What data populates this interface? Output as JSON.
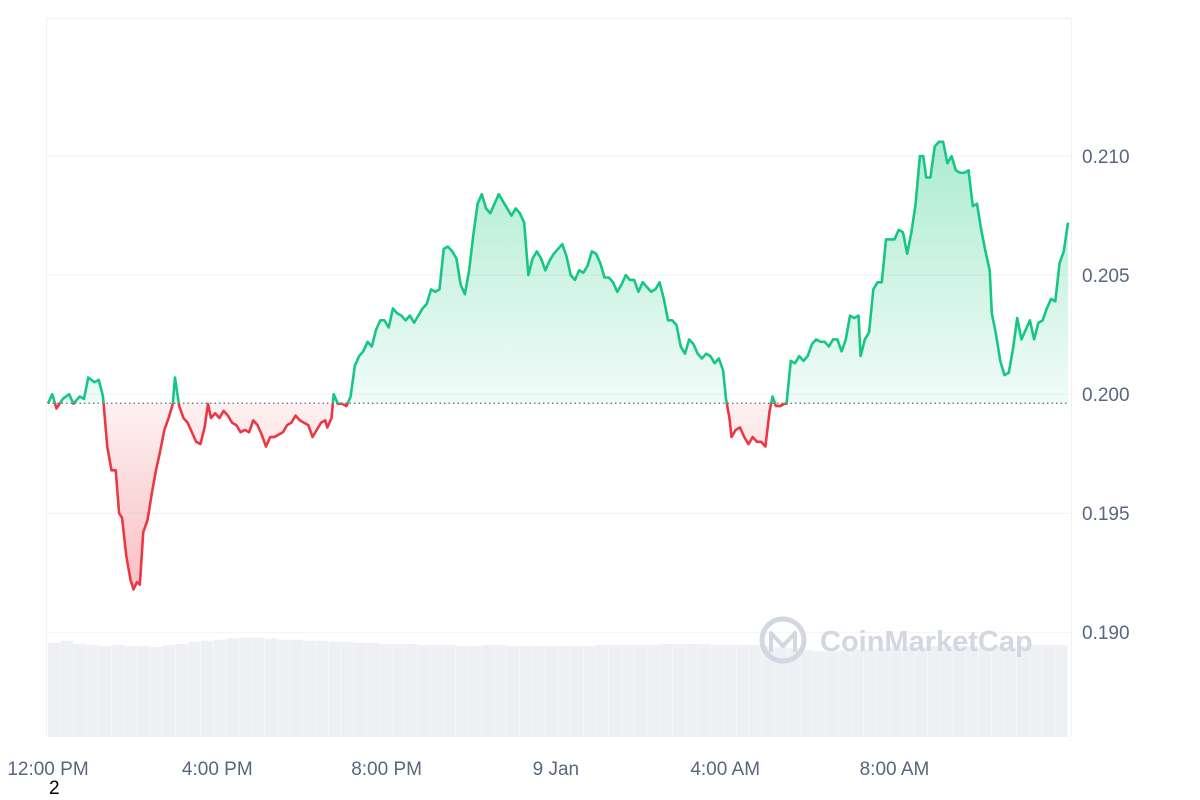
{
  "chart_data": {
    "type": "area",
    "baseline": 0.19962,
    "ylim": [
      0.1856,
      0.2158
    ],
    "y_ticks": [
      "0.210",
      "0.205",
      "0.200",
      "0.195",
      "0.190"
    ],
    "y_tick_values": [
      0.21,
      0.205,
      0.2,
      0.195,
      0.19
    ],
    "x_ticks": [
      "12:00 PM",
      "4:00 PM",
      "8:00 PM",
      "9 Jan",
      "4:00 AM",
      "8:00 AM"
    ],
    "x_tick_hours": [
      0,
      4,
      8,
      12,
      16,
      20
    ],
    "x_range_hours": [
      0,
      24.1
    ],
    "series": [
      {
        "type": "price",
        "points": [
          [
            0.0,
            0.1996
          ],
          [
            0.1,
            0.2
          ],
          [
            0.2,
            0.1994
          ],
          [
            0.35,
            0.1998
          ],
          [
            0.5,
            0.2
          ],
          [
            0.6,
            0.1996
          ],
          [
            0.75,
            0.1999
          ],
          [
            0.85,
            0.1998
          ],
          [
            0.95,
            0.2007
          ],
          [
            1.1,
            0.2005
          ],
          [
            1.2,
            0.2006
          ],
          [
            1.3,
            0.1999
          ],
          [
            1.4,
            0.1978
          ],
          [
            1.5,
            0.1968
          ],
          [
            1.6,
            0.1968
          ],
          [
            1.68,
            0.195
          ],
          [
            1.75,
            0.1948
          ],
          [
            1.85,
            0.1932
          ],
          [
            1.95,
            0.1922
          ],
          [
            2.02,
            0.1918
          ],
          [
            2.1,
            0.1921
          ],
          [
            2.17,
            0.192
          ],
          [
            2.25,
            0.1942
          ],
          [
            2.35,
            0.1947
          ],
          [
            2.45,
            0.1958
          ],
          [
            2.55,
            0.1968
          ],
          [
            2.65,
            0.1976
          ],
          [
            2.75,
            0.1985
          ],
          [
            2.85,
            0.199
          ],
          [
            2.95,
            0.1996
          ],
          [
            3.0,
            0.2007
          ],
          [
            3.1,
            0.1995
          ],
          [
            3.2,
            0.199
          ],
          [
            3.3,
            0.1988
          ],
          [
            3.4,
            0.1984
          ],
          [
            3.5,
            0.198
          ],
          [
            3.6,
            0.1979
          ],
          [
            3.7,
            0.1986
          ],
          [
            3.78,
            0.1996
          ],
          [
            3.85,
            0.199
          ],
          [
            3.95,
            0.1992
          ],
          [
            4.05,
            0.199
          ],
          [
            4.15,
            0.1993
          ],
          [
            4.25,
            0.1991
          ],
          [
            4.35,
            0.1988
          ],
          [
            4.45,
            0.1987
          ],
          [
            4.55,
            0.1984
          ],
          [
            4.65,
            0.1985
          ],
          [
            4.75,
            0.1984
          ],
          [
            4.85,
            0.1989
          ],
          [
            4.95,
            0.1987
          ],
          [
            5.05,
            0.1983
          ],
          [
            5.15,
            0.1978
          ],
          [
            5.25,
            0.1982
          ],
          [
            5.35,
            0.1982
          ],
          [
            5.45,
            0.1983
          ],
          [
            5.55,
            0.1984
          ],
          [
            5.65,
            0.1987
          ],
          [
            5.75,
            0.1988
          ],
          [
            5.85,
            0.1991
          ],
          [
            5.95,
            0.1989
          ],
          [
            6.05,
            0.1988
          ],
          [
            6.15,
            0.1987
          ],
          [
            6.25,
            0.1982
          ],
          [
            6.35,
            0.1985
          ],
          [
            6.45,
            0.1988
          ],
          [
            6.55,
            0.1989
          ],
          [
            6.6,
            0.1986
          ],
          [
            6.7,
            0.199
          ],
          [
            6.75,
            0.2
          ],
          [
            6.85,
            0.1996
          ],
          [
            6.95,
            0.1996
          ],
          [
            7.05,
            0.1995
          ],
          [
            7.15,
            0.1999
          ],
          [
            7.25,
            0.2012
          ],
          [
            7.35,
            0.2016
          ],
          [
            7.45,
            0.2018
          ],
          [
            7.55,
            0.2022
          ],
          [
            7.65,
            0.202
          ],
          [
            7.75,
            0.2027
          ],
          [
            7.85,
            0.2031
          ],
          [
            7.95,
            0.2031
          ],
          [
            8.05,
            0.2028
          ],
          [
            8.15,
            0.2036
          ],
          [
            8.25,
            0.2034
          ],
          [
            8.35,
            0.2033
          ],
          [
            8.45,
            0.2031
          ],
          [
            8.55,
            0.2033
          ],
          [
            8.65,
            0.203
          ],
          [
            8.75,
            0.2033
          ],
          [
            8.85,
            0.2036
          ],
          [
            8.95,
            0.2038
          ],
          [
            9.05,
            0.2044
          ],
          [
            9.15,
            0.2043
          ],
          [
            9.25,
            0.2044
          ],
          [
            9.35,
            0.2061
          ],
          [
            9.45,
            0.2062
          ],
          [
            9.55,
            0.206
          ],
          [
            9.65,
            0.2057
          ],
          [
            9.75,
            0.2046
          ],
          [
            9.85,
            0.2042
          ],
          [
            9.95,
            0.2052
          ],
          [
            10.05,
            0.2067
          ],
          [
            10.15,
            0.208
          ],
          [
            10.25,
            0.2084
          ],
          [
            10.35,
            0.2078
          ],
          [
            10.45,
            0.2076
          ],
          [
            10.55,
            0.208
          ],
          [
            10.65,
            0.2084
          ],
          [
            10.75,
            0.2081
          ],
          [
            10.85,
            0.2078
          ],
          [
            10.95,
            0.2075
          ],
          [
            11.05,
            0.2078
          ],
          [
            11.15,
            0.2076
          ],
          [
            11.25,
            0.2072
          ],
          [
            11.35,
            0.205
          ],
          [
            11.45,
            0.2057
          ],
          [
            11.55,
            0.206
          ],
          [
            11.65,
            0.2057
          ],
          [
            11.75,
            0.2052
          ],
          [
            11.85,
            0.2056
          ],
          [
            11.95,
            0.2059
          ],
          [
            12.05,
            0.2061
          ],
          [
            12.15,
            0.2063
          ],
          [
            12.25,
            0.2058
          ],
          [
            12.35,
            0.205
          ],
          [
            12.45,
            0.2048
          ],
          [
            12.55,
            0.2052
          ],
          [
            12.65,
            0.2051
          ],
          [
            12.75,
            0.2054
          ],
          [
            12.85,
            0.206
          ],
          [
            12.95,
            0.2059
          ],
          [
            13.05,
            0.2055
          ],
          [
            13.15,
            0.2049
          ],
          [
            13.25,
            0.2049
          ],
          [
            13.35,
            0.2047
          ],
          [
            13.45,
            0.2043
          ],
          [
            13.55,
            0.2046
          ],
          [
            13.65,
            0.205
          ],
          [
            13.75,
            0.2048
          ],
          [
            13.85,
            0.2048
          ],
          [
            13.95,
            0.2043
          ],
          [
            14.05,
            0.2047
          ],
          [
            14.15,
            0.2045
          ],
          [
            14.25,
            0.2043
          ],
          [
            14.35,
            0.2044
          ],
          [
            14.45,
            0.2047
          ],
          [
            14.55,
            0.204
          ],
          [
            14.65,
            0.2031
          ],
          [
            14.75,
            0.2031
          ],
          [
            14.85,
            0.2029
          ],
          [
            14.95,
            0.202
          ],
          [
            15.05,
            0.2017
          ],
          [
            15.15,
            0.2023
          ],
          [
            15.25,
            0.2021
          ],
          [
            15.35,
            0.2017
          ],
          [
            15.45,
            0.2015
          ],
          [
            15.55,
            0.2017
          ],
          [
            15.65,
            0.2016
          ],
          [
            15.75,
            0.2013
          ],
          [
            15.85,
            0.2015
          ],
          [
            15.95,
            0.201
          ],
          [
            16.02,
            0.1998
          ],
          [
            16.1,
            0.199
          ],
          [
            16.15,
            0.1982
          ],
          [
            16.25,
            0.1985
          ],
          [
            16.35,
            0.1986
          ],
          [
            16.45,
            0.1982
          ],
          [
            16.55,
            0.1979
          ],
          [
            16.65,
            0.1982
          ],
          [
            16.75,
            0.198
          ],
          [
            16.85,
            0.198
          ],
          [
            16.95,
            0.1978
          ],
          [
            17.05,
            0.1993
          ],
          [
            17.12,
            0.1999
          ],
          [
            17.2,
            0.1995
          ],
          [
            17.3,
            0.1995
          ],
          [
            17.4,
            0.1996
          ],
          [
            17.45,
            0.1996
          ],
          [
            17.55,
            0.2014
          ],
          [
            17.65,
            0.2013
          ],
          [
            17.75,
            0.2016
          ],
          [
            17.85,
            0.2014
          ],
          [
            17.95,
            0.2016
          ],
          [
            18.05,
            0.2021
          ],
          [
            18.15,
            0.2023
          ],
          [
            18.25,
            0.2022
          ],
          [
            18.35,
            0.2022
          ],
          [
            18.45,
            0.202
          ],
          [
            18.55,
            0.2023
          ],
          [
            18.65,
            0.2023
          ],
          [
            18.75,
            0.2018
          ],
          [
            18.85,
            0.2023
          ],
          [
            18.95,
            0.2033
          ],
          [
            19.05,
            0.2032
          ],
          [
            19.15,
            0.2033
          ],
          [
            19.2,
            0.2016
          ],
          [
            19.3,
            0.2023
          ],
          [
            19.4,
            0.2026
          ],
          [
            19.5,
            0.2044
          ],
          [
            19.6,
            0.2047
          ],
          [
            19.7,
            0.2047
          ],
          [
            19.8,
            0.2065
          ],
          [
            19.9,
            0.2065
          ],
          [
            20.0,
            0.2065
          ],
          [
            20.1,
            0.2069
          ],
          [
            20.2,
            0.2068
          ],
          [
            20.3,
            0.2059
          ],
          [
            20.4,
            0.2068
          ],
          [
            20.5,
            0.208
          ],
          [
            20.6,
            0.21
          ],
          [
            20.68,
            0.21
          ],
          [
            20.75,
            0.2091
          ],
          [
            20.85,
            0.2091
          ],
          [
            20.95,
            0.2104
          ],
          [
            21.05,
            0.2106
          ],
          [
            21.15,
            0.2106
          ],
          [
            21.25,
            0.2097
          ],
          [
            21.35,
            0.21
          ],
          [
            21.45,
            0.2094
          ],
          [
            21.55,
            0.2093
          ],
          [
            21.65,
            0.2093
          ],
          [
            21.75,
            0.2094
          ],
          [
            21.85,
            0.2079
          ],
          [
            21.95,
            0.208
          ],
          [
            22.05,
            0.2069
          ],
          [
            22.15,
            0.206
          ],
          [
            22.25,
            0.2052
          ],
          [
            22.3,
            0.2034
          ],
          [
            22.4,
            0.2025
          ],
          [
            22.5,
            0.2014
          ],
          [
            22.6,
            0.2008
          ],
          [
            22.7,
            0.2009
          ],
          [
            22.8,
            0.2019
          ],
          [
            22.9,
            0.2032
          ],
          [
            23.0,
            0.2023
          ],
          [
            23.1,
            0.2027
          ],
          [
            23.2,
            0.2031
          ],
          [
            23.3,
            0.2023
          ],
          [
            23.4,
            0.203
          ],
          [
            23.5,
            0.2031
          ],
          [
            23.6,
            0.2036
          ],
          [
            23.7,
            0.204
          ],
          [
            23.8,
            0.2039
          ],
          [
            23.9,
            0.2055
          ],
          [
            24.0,
            0.206
          ],
          [
            24.1,
            0.2072
          ]
        ]
      }
    ],
    "volume_relative": [
      0.88,
      0.9,
      0.87,
      0.86,
      0.85,
      0.86,
      0.85,
      0.85,
      0.84,
      0.86,
      0.87,
      0.89,
      0.9,
      0.91,
      0.92,
      0.93,
      0.93,
      0.92,
      0.91,
      0.91,
      0.9,
      0.9,
      0.89,
      0.89,
      0.88,
      0.88,
      0.87,
      0.87,
      0.87,
      0.86,
      0.86,
      0.86,
      0.85,
      0.85,
      0.86,
      0.86,
      0.85,
      0.85,
      0.85,
      0.85,
      0.85,
      0.85,
      0.85,
      0.86,
      0.86,
      0.86,
      0.86,
      0.86,
      0.87,
      0.87,
      0.87,
      0.87,
      0.86,
      0.86,
      0.86,
      0.86,
      0.85,
      0.84,
      0.83,
      0.81,
      0.8,
      0.8,
      0.81,
      0.82,
      0.82,
      0.83,
      0.84,
      0.84,
      0.84,
      0.85,
      0.85,
      0.85,
      0.85,
      0.84,
      0.84,
      0.84,
      0.85,
      0.86,
      0.86,
      0.86
    ],
    "colors": {
      "up": "#16c784",
      "down": "#ea3943",
      "baseline": "#626a7b",
      "grid": "#eff2f5",
      "volume": "#eef0f4"
    }
  },
  "watermark": {
    "brand": "CoinMarketCap"
  },
  "stray_label": "2"
}
